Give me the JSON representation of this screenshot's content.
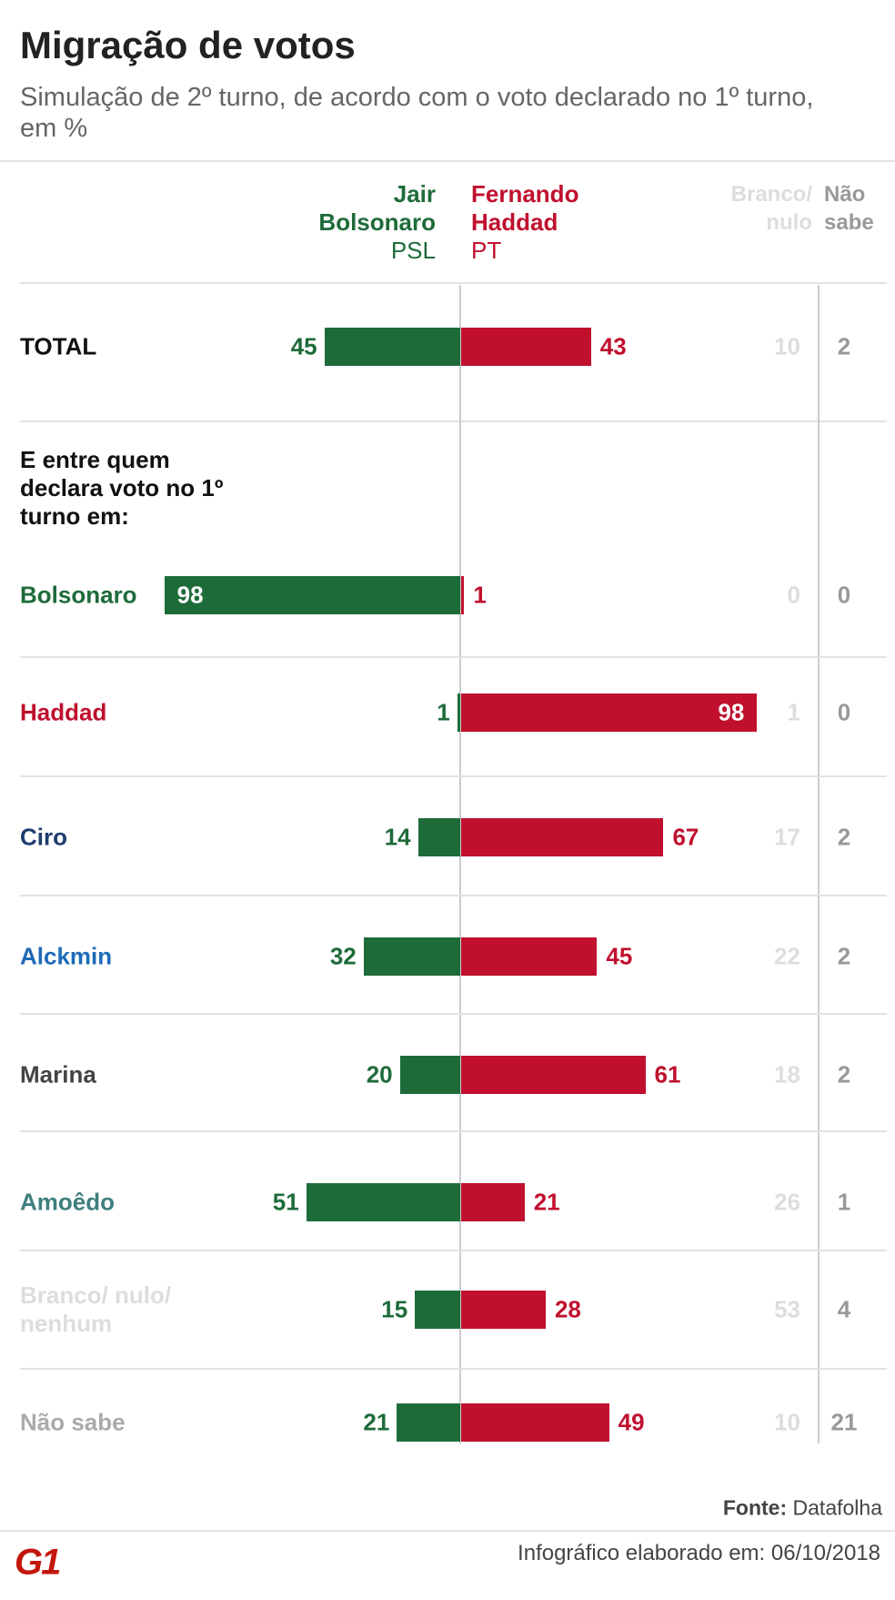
{
  "chart_data": {
    "type": "diverging_bar",
    "title": "Migração de votos",
    "subtitle": "Simulação de 2º turno, de acordo com o voto declarado no 1º turno, em %",
    "section_label": "E entre quem declara voto no 1º turno em:",
    "categories": [
      "TOTAL",
      "Bolsonaro",
      "Haddad",
      "Ciro",
      "Alckmin",
      "Marina",
      "Amoêdo",
      "Branco/ nulo/ nenhum",
      "Não sabe"
    ],
    "category_colors": [
      "#111111",
      "#1e6b3a",
      "#c0102e",
      "#1f3c6e",
      "#1e6bb8",
      "#444444",
      "#3f7f7f",
      "#dddddd",
      "#aaaaaa"
    ],
    "series": [
      {
        "name": "Jair Bolsonaro",
        "party": "PSL",
        "color": "#1e6b3a",
        "values": [
          45,
          98,
          1,
          14,
          32,
          20,
          51,
          15,
          21
        ]
      },
      {
        "name": "Fernando Haddad",
        "party": "PT",
        "color": "#c0102e",
        "values": [
          43,
          1,
          98,
          67,
          45,
          61,
          21,
          28,
          49
        ]
      },
      {
        "name": "Branco/ nulo",
        "color": "#dddddd",
        "values": [
          10,
          0,
          1,
          17,
          22,
          18,
          26,
          53,
          10
        ]
      },
      {
        "name": "Não sabe",
        "color": "#999999",
        "values": [
          2,
          0,
          0,
          2,
          2,
          2,
          1,
          4,
          21
        ]
      }
    ],
    "xlim": [
      0,
      100
    ],
    "source_label": "Fonte:",
    "source": "Datafolha"
  },
  "footer": "Infográfico elaborado em: 06/10/2018",
  "logo": "G1"
}
